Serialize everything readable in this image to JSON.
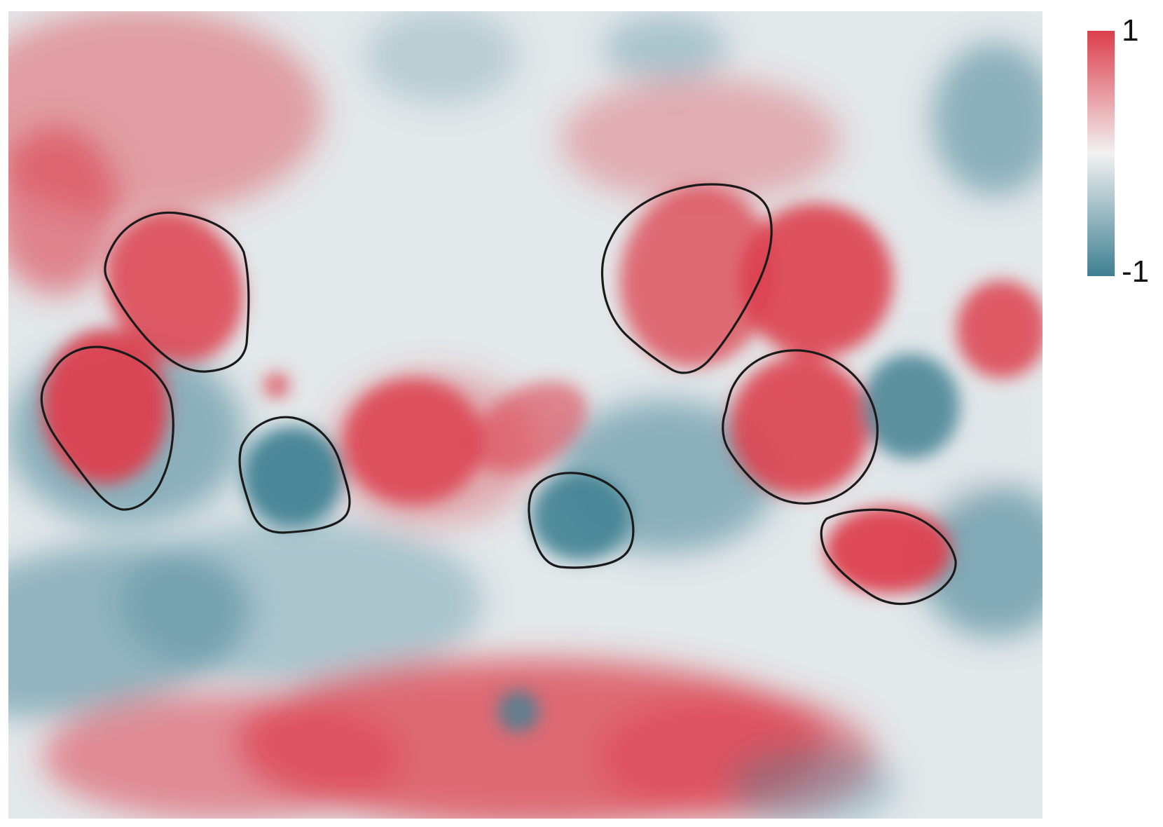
{
  "figure": {
    "kind": "correlation-map",
    "colormap": {
      "low_color": "#3e7f91",
      "mid_color": "#f2f2f2",
      "high_color": "#dc3d4b",
      "max_label": "1",
      "min_label": "-1"
    },
    "outline_color": "#1a1a1a",
    "outlined_regions": [
      {
        "id": "roi-1",
        "dominant_value": "positive"
      },
      {
        "id": "roi-2",
        "dominant_value": "positive"
      },
      {
        "id": "roi-3",
        "dominant_value": "negative"
      },
      {
        "id": "roi-4",
        "dominant_value": "negative"
      },
      {
        "id": "roi-5",
        "dominant_value": "positive"
      },
      {
        "id": "roi-6",
        "dominant_value": "positive"
      },
      {
        "id": "roi-7",
        "dominant_value": "positive"
      }
    ]
  }
}
